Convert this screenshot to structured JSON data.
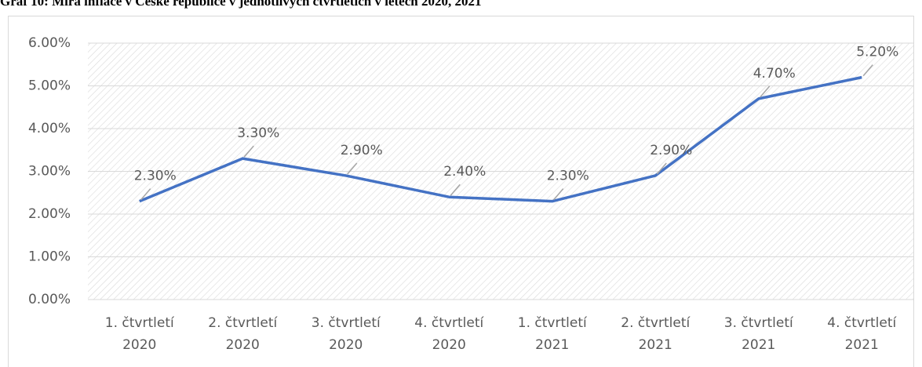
{
  "chart_data": {
    "type": "line",
    "title": "Graf 10: Míra inflace v České republice v jednotlivých čtvrtletích v letech 2020, 2021",
    "categories": [
      "1. čtvrtletí 2020",
      "2. čtvrtletí 2020",
      "3. čtvrtletí 2020",
      "4. čtvrtletí 2020",
      "1. čtvrtletí 2021",
      "2. čtvrtletí 2021",
      "3. čtvrtletí 2021",
      "4. čtvrtletí 2021"
    ],
    "series": [
      {
        "name": "Míra inflace",
        "color": "#4472c4",
        "values": [
          2.3,
          3.3,
          2.9,
          2.4,
          2.3,
          2.9,
          4.7,
          5.2
        ],
        "value_labels": [
          "2.30%",
          "3.30%",
          "2.90%",
          "2.40%",
          "2.30%",
          "2.90%",
          "4.70%",
          "5.20%"
        ]
      }
    ],
    "ylim": [
      0,
      6
    ],
    "yticks": [
      {
        "value": 0,
        "label": "0.00%"
      },
      {
        "value": 1,
        "label": "1.00%"
      },
      {
        "value": 2,
        "label": "2.00%"
      },
      {
        "value": 3,
        "label": "3.00%"
      },
      {
        "value": 4,
        "label": "4.00%"
      },
      {
        "value": 5,
        "label": "5.00%"
      },
      {
        "value": 6,
        "label": "6.00%"
      }
    ],
    "grid": true
  }
}
